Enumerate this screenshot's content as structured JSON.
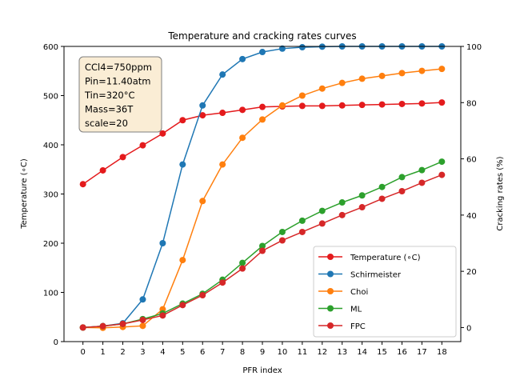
{
  "chart_data": {
    "type": "line",
    "title": "Temperature and cracking rates curves",
    "xlabel": "PFR index",
    "ylabel_left": "Temperature ($^{\\circ}$C)",
    "ylabel_left_display": "Temperature (∘C)",
    "ylabel_right": "Cracking rates (%)",
    "x": [
      0,
      1,
      2,
      3,
      4,
      5,
      6,
      7,
      8,
      9,
      10,
      11,
      12,
      13,
      14,
      15,
      16,
      17,
      18
    ],
    "ylim_left": [
      0,
      600
    ],
    "yticks_left": [
      0,
      100,
      200,
      300,
      400,
      500,
      600
    ],
    "ylim_right": [
      -5,
      100
    ],
    "yticks_right": [
      0,
      20,
      40,
      60,
      80,
      100
    ],
    "grid": false,
    "legend_position": "lower-right",
    "info_box": [
      "CCl4=750ppm",
      "Pin=11.40atm",
      "Tin=320°C",
      "Mass=36T",
      "scale=20"
    ],
    "series": [
      {
        "name": "Temperature (∘C)",
        "axis": "left",
        "color": "#e41a1c",
        "values": [
          320,
          348,
          375,
          399,
          423,
          450,
          460,
          465,
          471,
          477,
          478,
          479,
          479,
          480,
          481,
          482,
          483,
          484,
          486
        ]
      },
      {
        "name": "Schirmeister",
        "axis": "right",
        "color": "#1f77b4",
        "values": [
          0,
          0.5,
          1.5,
          10,
          30,
          58,
          79,
          90,
          95.5,
          98,
          99.2,
          99.7,
          99.9,
          100,
          100,
          100,
          100,
          100,
          100
        ]
      },
      {
        "name": "Choi",
        "axis": "right",
        "color": "#ff7f0e",
        "values": [
          0,
          -0.1,
          0.2,
          0.6,
          6.5,
          24,
          45,
          58,
          67.5,
          74,
          79,
          82.5,
          85,
          87,
          88.5,
          89.5,
          90.5,
          91.3,
          92
        ]
      },
      {
        "name": "ML",
        "axis": "right",
        "color": "#2ca02c",
        "values": [
          0,
          0.5,
          1.3,
          3,
          5,
          8.5,
          12,
          17,
          23,
          29,
          34,
          38,
          41.5,
          44.5,
          47,
          50,
          53.5,
          56,
          59
        ]
      },
      {
        "name": "FPC",
        "axis": "right",
        "color": "#d62728",
        "values": [
          0,
          0.5,
          1.3,
          2.7,
          4.3,
          8,
          11.5,
          16,
          21,
          27.3,
          31,
          34,
          37,
          40,
          42.8,
          45.8,
          48.5,
          51.5,
          54.3
        ]
      }
    ]
  }
}
